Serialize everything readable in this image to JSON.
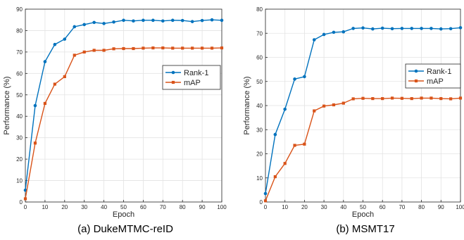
{
  "chart_data": [
    {
      "type": "line",
      "caption": "(a) DukeMTMC-reID",
      "xlabel": "Epoch",
      "ylabel": "Performance (%)",
      "xlim": [
        0,
        100
      ],
      "ylim": [
        0,
        90
      ],
      "xticks": [
        0,
        10,
        20,
        30,
        40,
        50,
        60,
        70,
        80,
        90,
        100
      ],
      "yticks": [
        0,
        10,
        20,
        30,
        40,
        50,
        60,
        70,
        80,
        90
      ],
      "grid": true,
      "legend_position": "right",
      "x": [
        0,
        5,
        10,
        15,
        20,
        25,
        30,
        35,
        40,
        45,
        50,
        55,
        60,
        65,
        70,
        75,
        80,
        85,
        90,
        95,
        100
      ],
      "series": [
        {
          "name": "Rank-1",
          "color": "#0072BD",
          "marker": "circle",
          "values": [
            5.5,
            45,
            65.5,
            73.5,
            76,
            81.8,
            82.8,
            83.8,
            83.3,
            84,
            84.8,
            84.5,
            84.8,
            84.8,
            84.5,
            84.8,
            84.7,
            84.2,
            84.7,
            85,
            84.8
          ]
        },
        {
          "name": "mAP",
          "color": "#D95319",
          "marker": "square",
          "values": [
            1.5,
            27.5,
            46,
            55,
            58.5,
            68.5,
            70,
            70.8,
            70.8,
            71.5,
            71.6,
            71.6,
            71.8,
            71.9,
            71.9,
            71.8,
            71.8,
            71.8,
            71.8,
            71.8,
            71.9
          ]
        }
      ]
    },
    {
      "type": "line",
      "caption": "(b) MSMT17",
      "xlabel": "Epoch",
      "ylabel": "Performance (%)",
      "xlim": [
        0,
        100
      ],
      "ylim": [
        0,
        80
      ],
      "xticks": [
        0,
        10,
        20,
        30,
        40,
        50,
        60,
        70,
        80,
        90,
        100
      ],
      "yticks": [
        0,
        10,
        20,
        30,
        40,
        50,
        60,
        70,
        80
      ],
      "grid": true,
      "legend_position": "right",
      "x": [
        0,
        5,
        10,
        15,
        20,
        25,
        30,
        35,
        40,
        45,
        50,
        55,
        60,
        65,
        70,
        75,
        80,
        85,
        90,
        95,
        100
      ],
      "series": [
        {
          "name": "Rank-1",
          "color": "#0072BD",
          "marker": "circle",
          "values": [
            3.5,
            28,
            38.5,
            51,
            52,
            67.3,
            69.5,
            70.4,
            70.6,
            72,
            72.2,
            71.8,
            72.1,
            71.9,
            72,
            72,
            72,
            72,
            71.8,
            71.9,
            72.3
          ]
        },
        {
          "name": "mAP",
          "color": "#D95319",
          "marker": "square",
          "values": [
            0.5,
            10.5,
            16,
            23.5,
            24,
            37.8,
            39.8,
            40.3,
            41,
            42.8,
            43,
            42.9,
            42.9,
            43.1,
            43,
            42.9,
            43.1,
            43.1,
            42.9,
            42.8,
            43.1
          ]
        }
      ]
    }
  ]
}
